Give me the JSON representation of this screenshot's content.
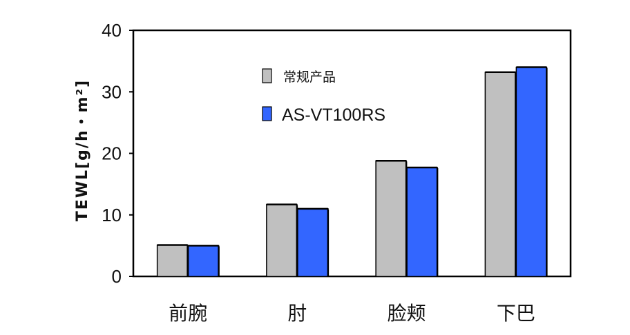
{
  "chart_data": {
    "type": "bar",
    "categories": [
      "前腕",
      "肘",
      "脸颊",
      "下巴"
    ],
    "series": [
      {
        "name": "常规产品",
        "values": [
          5.1,
          11.7,
          18.8,
          33.2
        ],
        "color": "#c0c0c0"
      },
      {
        "name": "AS-VT100RS",
        "values": [
          5.0,
          11.0,
          17.7,
          34.0
        ],
        "color": "#3366ff"
      }
    ],
    "title": "",
    "xlabel": "",
    "ylabel": "TEWL[g/h・m²]",
    "ylim": [
      0,
      40
    ],
    "yticks": [
      "0",
      "10",
      "20",
      "30",
      "40"
    ],
    "grid": false,
    "legend_position": "top-left inside plot"
  }
}
